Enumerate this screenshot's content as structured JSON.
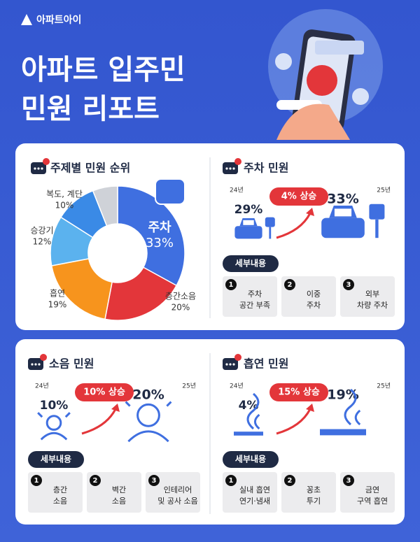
{
  "brand": "아파트아이",
  "title": [
    "아파트 입주민",
    "민원 리포트"
  ],
  "chart_data": {
    "type": "pie",
    "donut": true,
    "title": "주제별 민원 순위",
    "categories": [
      "주차",
      "층간소음",
      "흡연",
      "승강기",
      "복도, 계단",
      null
    ],
    "values": [
      33,
      20,
      19,
      12,
      10,
      6
    ],
    "value_labels": [
      "33%",
      "20%",
      "19%",
      "12%",
      "10%",
      null
    ],
    "colors": [
      "#3f6fe0",
      "#e3363a",
      "#f7941d",
      "#5bb2ee",
      "#3a8ae6",
      "#cfd2d8"
    ]
  },
  "parking": {
    "title": "주차 민원",
    "year_before": "24년",
    "value_before": "29%",
    "change": "4% 상승",
    "year_after": "25년",
    "value_after": "33%",
    "details_label": "세부내용",
    "details": [
      {
        "number": 1,
        "lines": [
          "주차",
          "공간 부족"
        ]
      },
      {
        "number": 2,
        "lines": [
          "이중",
          "주차"
        ]
      },
      {
        "number": 3,
        "lines": [
          "외부",
          "차량 주차"
        ]
      }
    ]
  },
  "noise": {
    "title": "소음 민원",
    "year_before": "24년",
    "value_before": "10%",
    "change": "10% 상승",
    "year_after": "25년",
    "value_after": "20%",
    "details_label": "세부내용",
    "details": [
      {
        "number": 1,
        "lines": [
          "층간",
          "소음"
        ]
      },
      {
        "number": 2,
        "lines": [
          "벽간",
          "소음"
        ]
      },
      {
        "number": 3,
        "lines": [
          "인테리어",
          "및 공사 소음"
        ]
      }
    ]
  },
  "smoking": {
    "title": "흡연 민원",
    "year_before": "24년",
    "value_before": "4%",
    "change": "15% 상승",
    "year_after": "25년",
    "value_after": "19%",
    "details_label": "세부내용",
    "details": [
      {
        "number": 1,
        "lines": [
          "실내 흡연",
          "연기·냄새"
        ]
      },
      {
        "number": 2,
        "lines": [
          "꽁초",
          "투기"
        ]
      },
      {
        "number": 3,
        "lines": [
          "금연",
          "구역 흡연"
        ]
      }
    ]
  }
}
